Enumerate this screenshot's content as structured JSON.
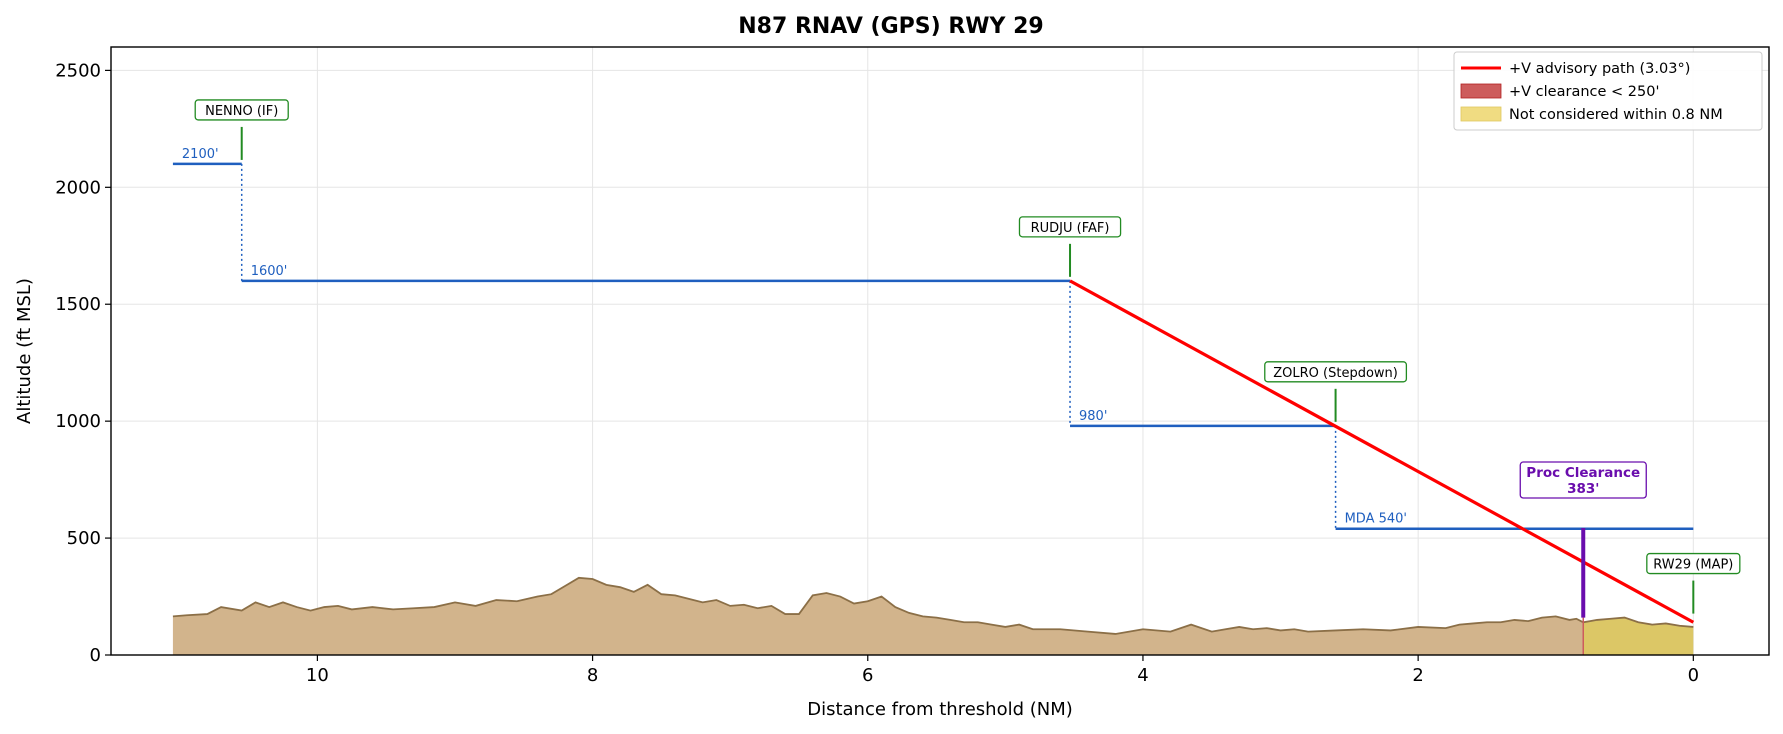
{
  "chart_data": {
    "type": "line",
    "title": "N87  RNAV (GPS) RWY 29",
    "xlabel": "Distance from threshold (NM)",
    "ylabel": "Altitude (ft MSL)",
    "xlim": [
      11.5,
      -0.55
    ],
    "ylim": [
      0,
      2600
    ],
    "x_ticks": [
      10,
      8,
      6,
      4,
      2,
      0
    ],
    "y_ticks": [
      0,
      500,
      1000,
      1500,
      2000,
      2500
    ],
    "grid": true,
    "legend_position": "top-right",
    "legend": [
      {
        "label": "+V advisory path (3.03°)",
        "kind": "line",
        "color": "#ff0000"
      },
      {
        "label": "+V clearance < 250'",
        "kind": "patch",
        "color": "#cd5c5c"
      },
      {
        "label": "Not considered within 0.8 NM",
        "kind": "patch",
        "color": "#f0dc82"
      }
    ],
    "segments": [
      {
        "label": "2100'",
        "alt": 2100,
        "x_start": 11.05,
        "x_end": 10.55
      },
      {
        "label": "1600'",
        "alt": 1600,
        "x_start": 10.55,
        "x_end": 4.53
      },
      {
        "label": "980'",
        "alt": 980,
        "x_start": 4.53,
        "x_end": 2.6
      },
      {
        "label": "MDA 540'",
        "alt": 540,
        "x_start": 2.6,
        "x_end": 0.0
      }
    ],
    "step_connectors": [
      {
        "x": 10.55,
        "from": 2100,
        "to": 1600
      },
      {
        "x": 4.53,
        "from": 1600,
        "to": 980
      },
      {
        "x": 2.6,
        "from": 980,
        "to": 540
      }
    ],
    "advisory_path": {
      "x": [
        4.53,
        0.0
      ],
      "y": [
        1600,
        140
      ]
    },
    "fixes": [
      {
        "name": "NENNO (IF)",
        "x": 10.55,
        "alt": 2100
      },
      {
        "name": "RUDJU (FAF)",
        "x": 4.53,
        "alt": 1600
      },
      {
        "name": "ZOLRO (Stepdown)",
        "x": 2.6,
        "alt": 980
      },
      {
        "name": "RW29 (MAP)",
        "x": 0.0,
        "alt": 160
      }
    ],
    "proc_clearance": {
      "line1": "Proc Clearance",
      "line2": "383'",
      "x": 0.8,
      "y_bottom": 160,
      "y_top": 543
    },
    "not_considered_zone": {
      "x_start": 0.8,
      "x_end": 0.0
    },
    "terrain": {
      "x": [
        11.05,
        10.95,
        10.8,
        10.7,
        10.55,
        10.45,
        10.35,
        10.25,
        10.15,
        10.05,
        9.95,
        9.85,
        9.75,
        9.6,
        9.45,
        9.3,
        9.15,
        9.0,
        8.85,
        8.7,
        8.55,
        8.4,
        8.3,
        8.2,
        8.1,
        8.0,
        7.9,
        7.8,
        7.7,
        7.6,
        7.5,
        7.4,
        7.3,
        7.2,
        7.1,
        7.0,
        6.9,
        6.8,
        6.7,
        6.6,
        6.5,
        6.4,
        6.3,
        6.2,
        6.1,
        6.0,
        5.9,
        5.8,
        5.7,
        5.6,
        5.5,
        5.4,
        5.3,
        5.2,
        5.1,
        5.0,
        4.9,
        4.8,
        4.6,
        4.4,
        4.2,
        4.0,
        3.8,
        3.65,
        3.5,
        3.4,
        3.3,
        3.2,
        3.1,
        3.0,
        2.9,
        2.8,
        2.6,
        2.4,
        2.2,
        2.0,
        1.8,
        1.7,
        1.6,
        1.5,
        1.4,
        1.3,
        1.2,
        1.1,
        1.0,
        0.9,
        0.85,
        0.8,
        0.75,
        0.7,
        0.6,
        0.5,
        0.4,
        0.3,
        0.2,
        0.1,
        0.0
      ],
      "y": [
        165,
        170,
        175,
        205,
        190,
        225,
        205,
        225,
        205,
        190,
        205,
        210,
        195,
        205,
        195,
        200,
        205,
        225,
        210,
        235,
        230,
        250,
        260,
        295,
        330,
        325,
        300,
        290,
        270,
        300,
        260,
        255,
        240,
        225,
        235,
        210,
        215,
        200,
        210,
        175,
        175,
        255,
        265,
        250,
        220,
        230,
        250,
        205,
        180,
        165,
        160,
        150,
        140,
        140,
        130,
        120,
        130,
        110,
        110,
        100,
        90,
        110,
        100,
        130,
        100,
        110,
        120,
        110,
        115,
        105,
        110,
        100,
        105,
        110,
        105,
        120,
        115,
        130,
        135,
        140,
        140,
        150,
        145,
        160,
        165,
        150,
        155,
        140,
        145,
        150,
        155,
        160,
        140,
        130,
        135,
        125,
        120
      ]
    }
  }
}
